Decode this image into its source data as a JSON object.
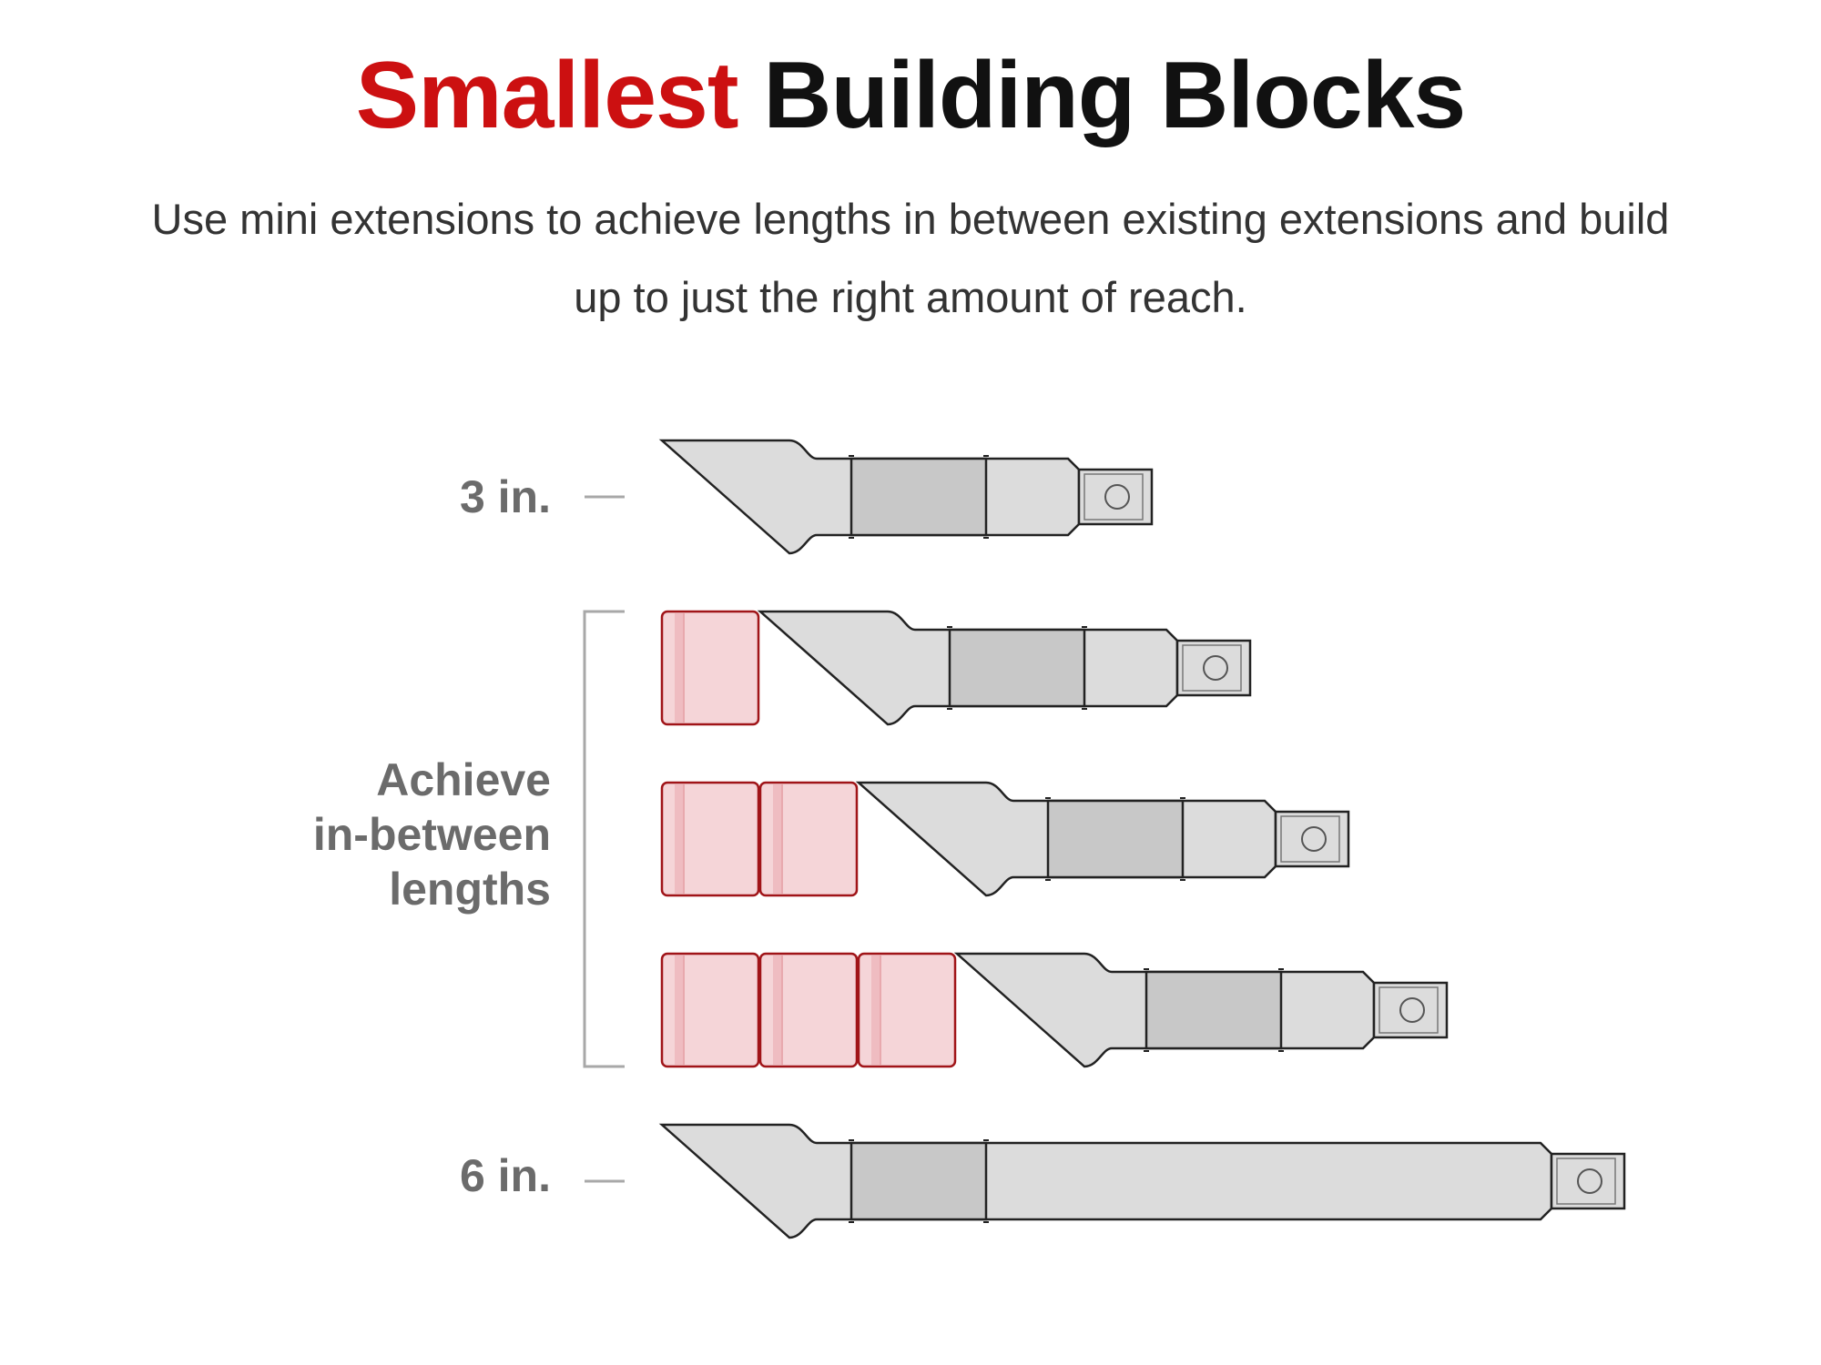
{
  "header": {
    "title_accent": "Smallest",
    "title_rest": "Building Blocks",
    "subtitle_line1": "Use mini extensions to achieve lengths in between existing extensions and build",
    "subtitle_line2": "up to just the right amount of reach."
  },
  "labels": {
    "short": "3 in.",
    "middle_line1": "Achieve",
    "middle_line2": "in-between",
    "middle_line3": "lengths",
    "long": "6 in."
  },
  "colors": {
    "accent": "#cc1011",
    "text_dark": "#111111",
    "label_gray": "#6b6b6b",
    "body_fill": "#dcdcdc",
    "grip_fill": "#c8c8c8",
    "mini_fill": "#f5d5d8",
    "mini_stroke": "#a01418"
  },
  "diagram": {
    "rows": [
      {
        "name": "extension-3in",
        "mini_count": 0
      },
      {
        "name": "extension-3in-plus-1-mini",
        "mini_count": 1
      },
      {
        "name": "extension-3in-plus-2-mini",
        "mini_count": 2
      },
      {
        "name": "extension-3in-plus-3-mini",
        "mini_count": 3
      },
      {
        "name": "extension-6in",
        "mini_count": 0
      }
    ]
  }
}
